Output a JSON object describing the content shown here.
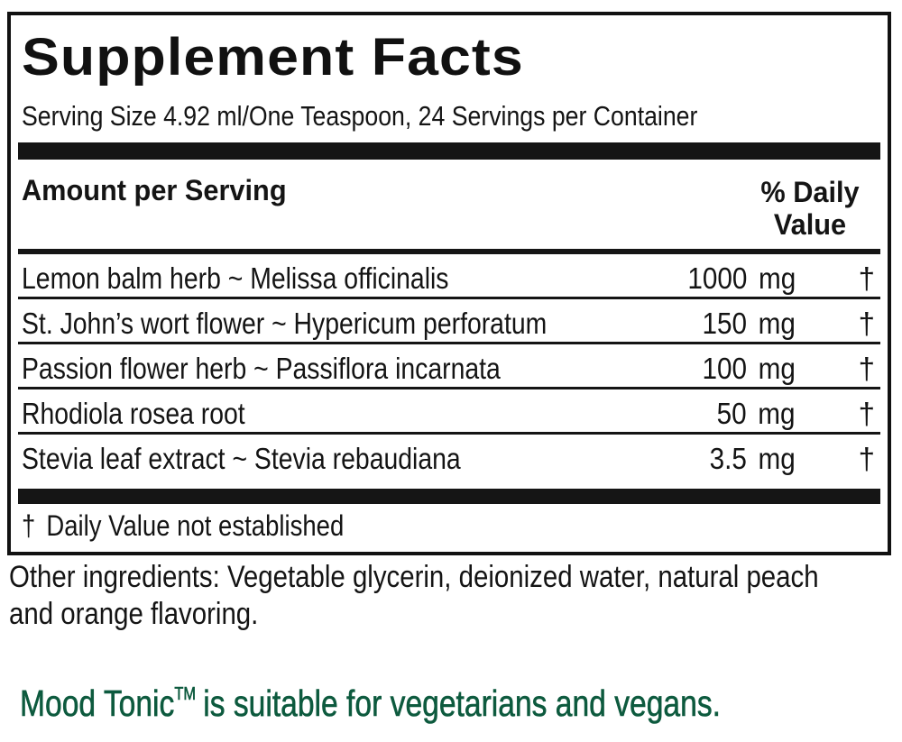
{
  "label": {
    "title": "Supplement Facts",
    "serving": "Serving Size 4.92 ml/One Teaspoon, 24 Servings per Container",
    "header": {
      "amount_per_serving": "Amount per Serving",
      "daily_value_line1": "% Daily",
      "daily_value_line2": "Value"
    },
    "rows": [
      {
        "name": "Lemon balm herb ~ Melissa officinalis",
        "amount": "1000",
        "unit": "mg",
        "dv": "†"
      },
      {
        "name": "St. John’s wort flower ~ Hypericum perforatum",
        "amount": "150",
        "unit": "mg",
        "dv": "†"
      },
      {
        "name": "Passion flower herb ~ Passiflora incarnata",
        "amount": "100",
        "unit": "mg",
        "dv": "†"
      },
      {
        "name": "Rhodiola rosea root",
        "amount": "50",
        "unit": "mg",
        "dv": "†"
      },
      {
        "name": "Stevia leaf extract ~ Stevia rebaudiana",
        "amount": "3.5",
        "unit": "mg",
        "dv": "†"
      }
    ],
    "footnote_symbol": "†",
    "footnote_text": "Daily Value not established"
  },
  "other_ingredients": "Other ingredients: Vegetable glycerin, deionized water, natural peach and orange flavoring.",
  "vegan_note": {
    "product": "Mood Tonic",
    "trademark": "TM",
    "text": "is suitable for vegetarians and vegans.",
    "color": "#0d5a3e"
  }
}
